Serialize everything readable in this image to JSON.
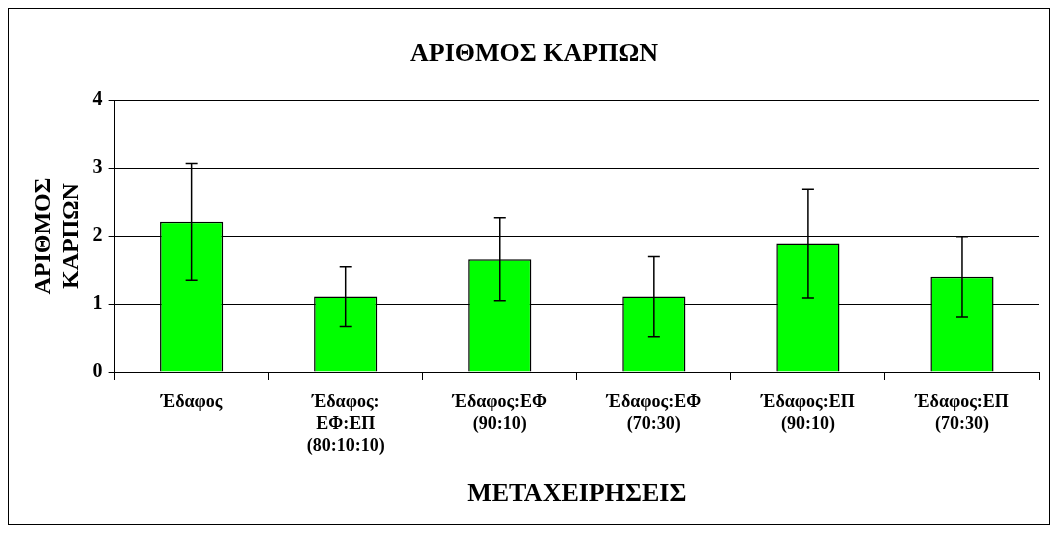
{
  "chart_data": {
    "type": "bar",
    "title": "ΑΡΙΘΜΟΣ ΚΑΡΠΩΝ",
    "xlabel": "ΜΕΤΑΧΕΙΡΗΣΕΙΣ",
    "ylabel": "ΑΡΙΘΜΟΣ ΚΑΡΠΩΝ",
    "categories": [
      "Έδαφος",
      "Έδαφος: ΕΦ:ΕΠ (80:10:10)",
      "Έδαφος:ΕΦ (90:10)",
      "Έδαφος:ΕΦ (70:30)",
      "Έδαφος:ΕΠ (90:10)",
      "Έδαφος:ΕΠ (70:30)"
    ],
    "values": [
      2.21,
      1.11,
      1.66,
      1.11,
      1.89,
      1.4
    ],
    "errors": [
      0.86,
      0.44,
      0.61,
      0.59,
      0.8,
      0.59
    ],
    "color": "#00ff00",
    "ylim": [
      0,
      4
    ],
    "yticks": [
      0,
      1,
      2,
      3,
      4
    ],
    "grid": "y",
    "legend": false
  }
}
